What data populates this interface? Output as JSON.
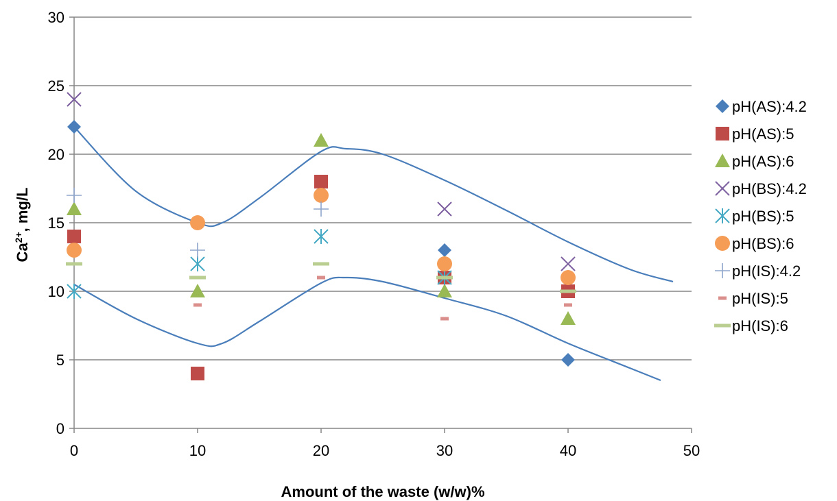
{
  "chart_data": {
    "type": "scatter",
    "title": "",
    "xlabel": "Amount of the waste (w/w)%",
    "ylabel_main": "Ca",
    "ylabel_sup": "2+",
    "ylabel_rest": ", mg/L",
    "xlim": [
      0,
      50
    ],
    "ylim": [
      0,
      30
    ],
    "x_ticks": [
      "0",
      "10",
      "20",
      "30",
      "40",
      "50"
    ],
    "y_ticks": [
      "0",
      "5",
      "10",
      "15",
      "20",
      "25",
      "30"
    ],
    "grid": "horizontal",
    "legend_position": "right",
    "series": [
      {
        "name": "pH(AS):4.2",
        "marker": "diamond",
        "color": "#4A7EBB",
        "x": [
          0,
          30,
          40
        ],
        "y": [
          22,
          13,
          5
        ]
      },
      {
        "name": "pH(AS):5",
        "marker": "square",
        "color": "#BE4B48",
        "x": [
          0,
          10,
          20,
          30,
          40
        ],
        "y": [
          14,
          4,
          18,
          11,
          10
        ]
      },
      {
        "name": "pH(AS):6",
        "marker": "triangle",
        "color": "#98B954",
        "x": [
          0,
          10,
          20,
          30,
          40
        ],
        "y": [
          16,
          10,
          21,
          10,
          8
        ]
      },
      {
        "name": "pH(BS):4.2",
        "marker": "x",
        "color": "#7D60A0",
        "x": [
          0,
          30,
          40
        ],
        "y": [
          24,
          16,
          12
        ]
      },
      {
        "name": "pH(BS):5",
        "marker": "star",
        "color": "#46AAC5",
        "x": [
          0,
          10,
          20,
          30
        ],
        "y": [
          10,
          12,
          14,
          11
        ]
      },
      {
        "name": "pH(BS):6",
        "marker": "circle",
        "color": "#F59D56",
        "x": [
          0,
          10,
          20,
          30,
          40
        ],
        "y": [
          13,
          15,
          17,
          12,
          11
        ]
      },
      {
        "name": "pH(IS):4.2",
        "marker": "plus",
        "color": "#8EA5CB",
        "x": [
          0,
          10,
          20
        ],
        "y": [
          17,
          13,
          16
        ]
      },
      {
        "name": "pH(IS):5",
        "marker": "shortdash",
        "color": "#DA8F8D",
        "x": [
          10,
          20,
          30,
          40
        ],
        "y": [
          9,
          11,
          8,
          9
        ]
      },
      {
        "name": "pH(IS):6",
        "marker": "longdash",
        "color": "#B9CE90",
        "x": [
          0,
          10,
          20,
          30,
          40
        ],
        "y": [
          12,
          11,
          12,
          11,
          10
        ]
      }
    ],
    "envelope_curves": [
      {
        "color": "#4A7EBB",
        "x": [
          0,
          5,
          10,
          12,
          15,
          20,
          22,
          25,
          30,
          35,
          40,
          45,
          48.5
        ],
        "y": [
          22,
          17.3,
          15,
          15,
          16.8,
          20.2,
          20.4,
          20,
          18.1,
          15.9,
          13.6,
          11.6,
          10.7
        ]
      },
      {
        "color": "#4A7EBB",
        "x": [
          0,
          5,
          10,
          12,
          15,
          20,
          22,
          25,
          30,
          35,
          40,
          45,
          47.5
        ],
        "y": [
          10.5,
          8,
          6.2,
          6.2,
          7.8,
          10.6,
          11,
          10.7,
          9.5,
          8.2,
          6.2,
          4.4,
          3.5
        ]
      }
    ]
  }
}
